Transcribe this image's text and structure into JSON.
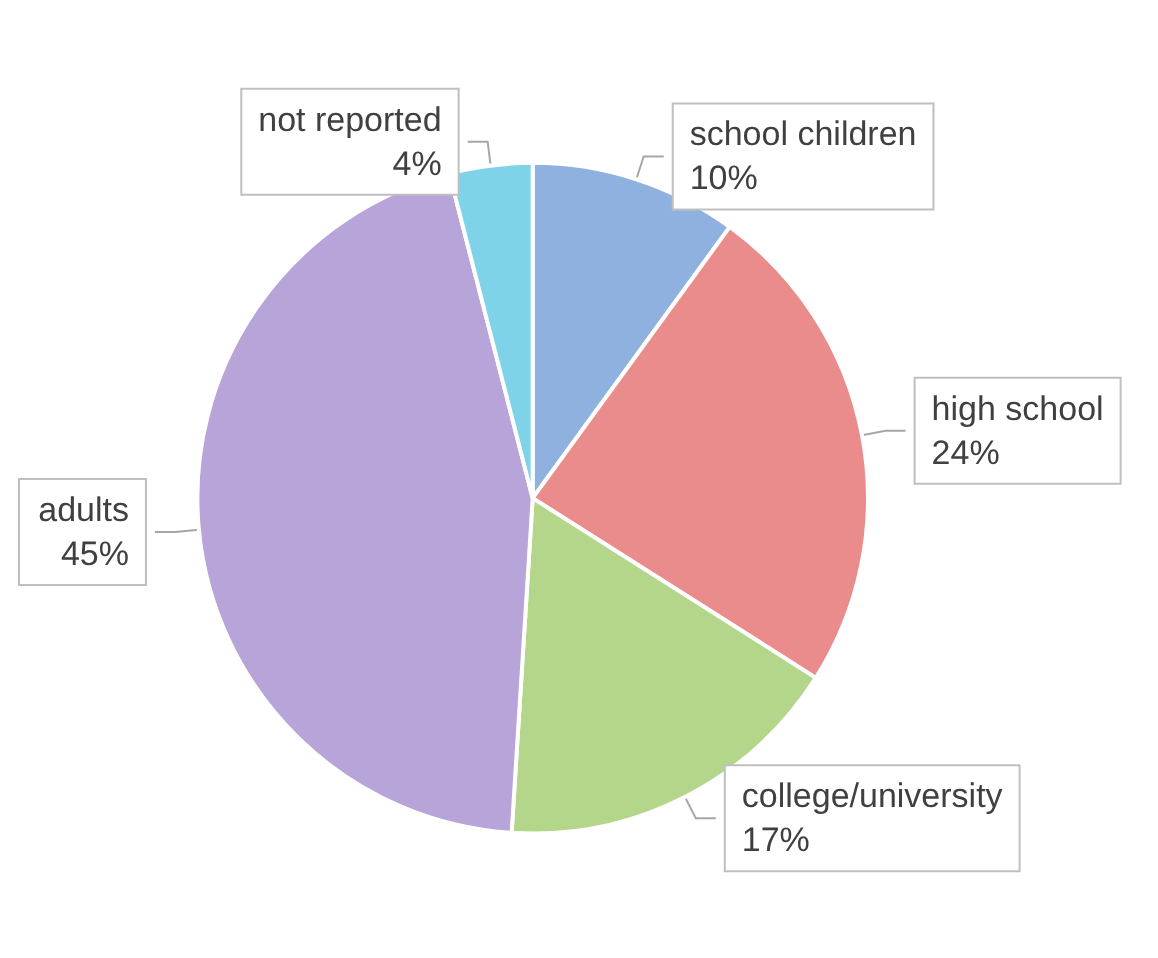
{
  "chart_data": {
    "type": "pie",
    "categories": [
      "school children",
      "high school",
      "college/university",
      "adults",
      "not reported"
    ],
    "values": [
      10,
      24,
      17,
      45,
      4
    ],
    "value_labels": [
      "10%",
      "24%",
      "17%",
      "45%",
      "4%"
    ],
    "colors": [
      "#8eb1e0",
      "#ea8c8c",
      "#b3d68a",
      "#b7a4d8",
      "#7fd3e8"
    ],
    "legend": false
  }
}
